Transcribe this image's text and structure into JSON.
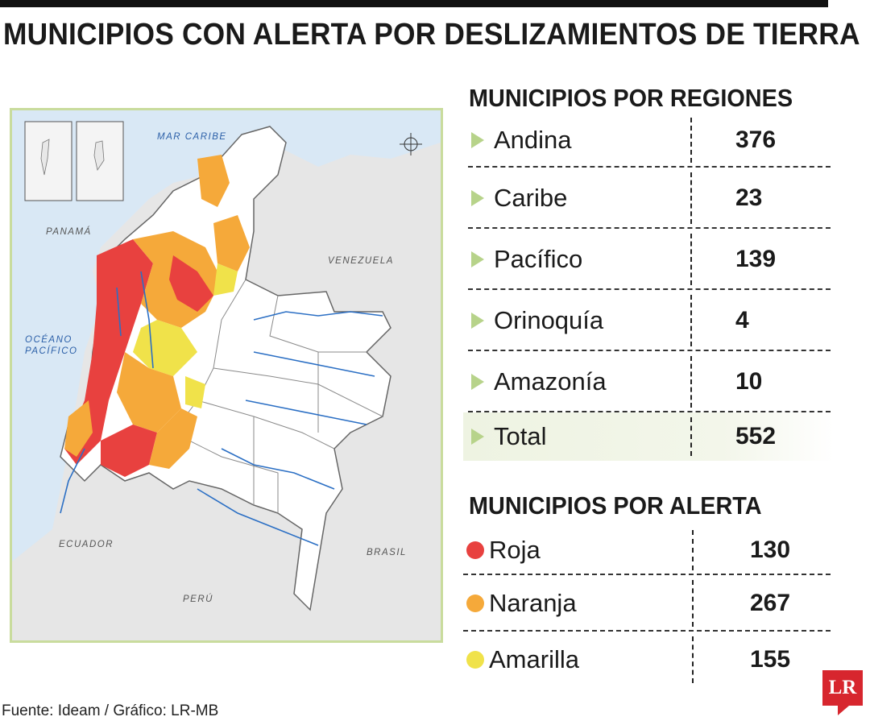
{
  "title": "MUNICIPIOS CON ALERTA POR DESLIZAMIENTOS DE TIERRA",
  "map": {
    "labels": {
      "mar_caribe": "MAR CARIBE",
      "panama": "PANAMÁ",
      "venezuela": "VENEZUELA",
      "oceano": "OCÉANO",
      "pacifico": "PACÍFICO",
      "ecuador": "ECUADOR",
      "brasil": "BRASIL",
      "peru": "PERÚ"
    },
    "colors": {
      "roja": "#e8413f",
      "naranja": "#f5a93a",
      "amarilla": "#f0e24a",
      "river": "#2b6fc4",
      "sea": "#d9e8f5",
      "land": "#ffffff",
      "neighbor": "#e6e6e6"
    }
  },
  "chart_data": [
    {
      "type": "table",
      "title": "MUNICIPIOS POR REGIONES",
      "categories": [
        "Andina",
        "Caribe",
        "Pacífico",
        "Orinoquía",
        "Amazonía",
        "Total"
      ],
      "values": [
        376,
        23,
        139,
        4,
        10,
        552
      ]
    },
    {
      "type": "table",
      "title": "MUNICIPIOS POR ALERTA",
      "categories": [
        "Roja",
        "Naranja",
        "Amarilla"
      ],
      "values": [
        130,
        267,
        155
      ],
      "colors": [
        "#e8413f",
        "#f5a93a",
        "#f0e24a"
      ]
    }
  ],
  "source": "Fuente:  Ideam / Gráfico: LR-MB",
  "logo": "LR",
  "accent": "#b7d38a"
}
